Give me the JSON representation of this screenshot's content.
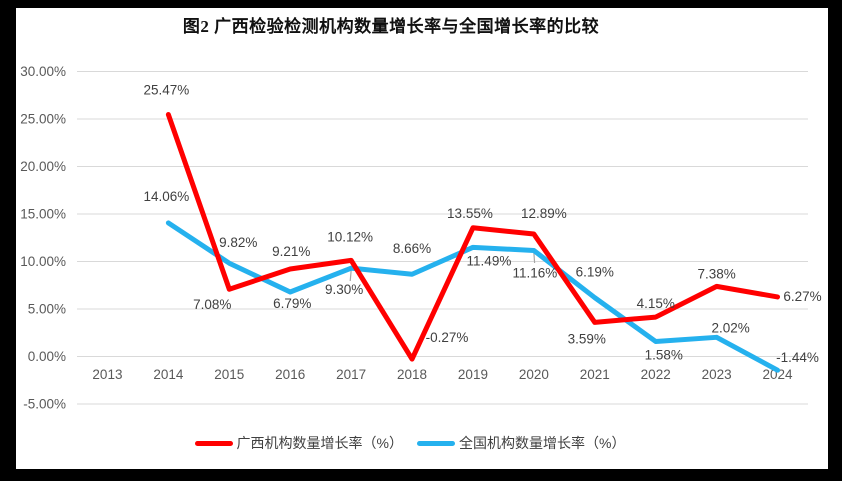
{
  "title": "图2 广西检验检测机构数量增长率与全国增长率的比较",
  "colors": {
    "guangxi_line": "#FF0000",
    "national_line": "#25B1EE",
    "gridline": "#D9D9D9",
    "axis_text": "#595959",
    "data_label_text": "#404040",
    "frame": "#000000",
    "background": "#FFFFFF"
  },
  "legend": {
    "items": [
      {
        "label": "广西机构数量增长率（%）",
        "color": "#FF0000"
      },
      {
        "label": "全国机构数量增长率（%）",
        "color": "#25B1EE"
      }
    ]
  },
  "chart_data": {
    "type": "line",
    "title": "图2 广西检验检测机构数量增长率与全国增长率的比较",
    "categories": [
      "2013",
      "2014",
      "2015",
      "2016",
      "2017",
      "2018",
      "2019",
      "2020",
      "2021",
      "2022",
      "2023",
      "2024"
    ],
    "series": [
      {
        "name": "广西机构数量增长率（%）",
        "color": "#FF0000",
        "values": [
          null,
          25.47,
          7.08,
          9.21,
          10.12,
          -0.27,
          13.55,
          12.89,
          3.59,
          4.15,
          7.38,
          6.27
        ],
        "point_labels": [
          null,
          "25.47%",
          "7.08%",
          "9.21%",
          "10.12%",
          "-0.27%",
          "13.55%",
          "12.89%",
          "3.59%",
          "4.15%",
          "7.38%",
          "6.27%"
        ]
      },
      {
        "name": "全国机构数量增长率（%）",
        "color": "#25B1EE",
        "values": [
          null,
          14.06,
          9.82,
          6.79,
          9.3,
          8.66,
          11.49,
          11.16,
          6.19,
          1.58,
          2.02,
          -1.44
        ],
        "point_labels": [
          null,
          "14.06%",
          "9.82%",
          "6.79%",
          "9.30%",
          "8.66%",
          "11.49%",
          "11.16%",
          "6.19%",
          "1.58%",
          "2.02%",
          "-1.44%"
        ]
      }
    ],
    "xlabel": "",
    "ylabel": "",
    "y_axis": {
      "min": -5,
      "max": 30,
      "step": 5,
      "tick_labels": [
        "30.00%",
        "25.00%",
        "20.00%",
        "15.00%",
        "10.00%",
        "5.00%",
        "0.00%",
        "-5.00%"
      ]
    },
    "grid": true,
    "legend_position": "bottom"
  }
}
